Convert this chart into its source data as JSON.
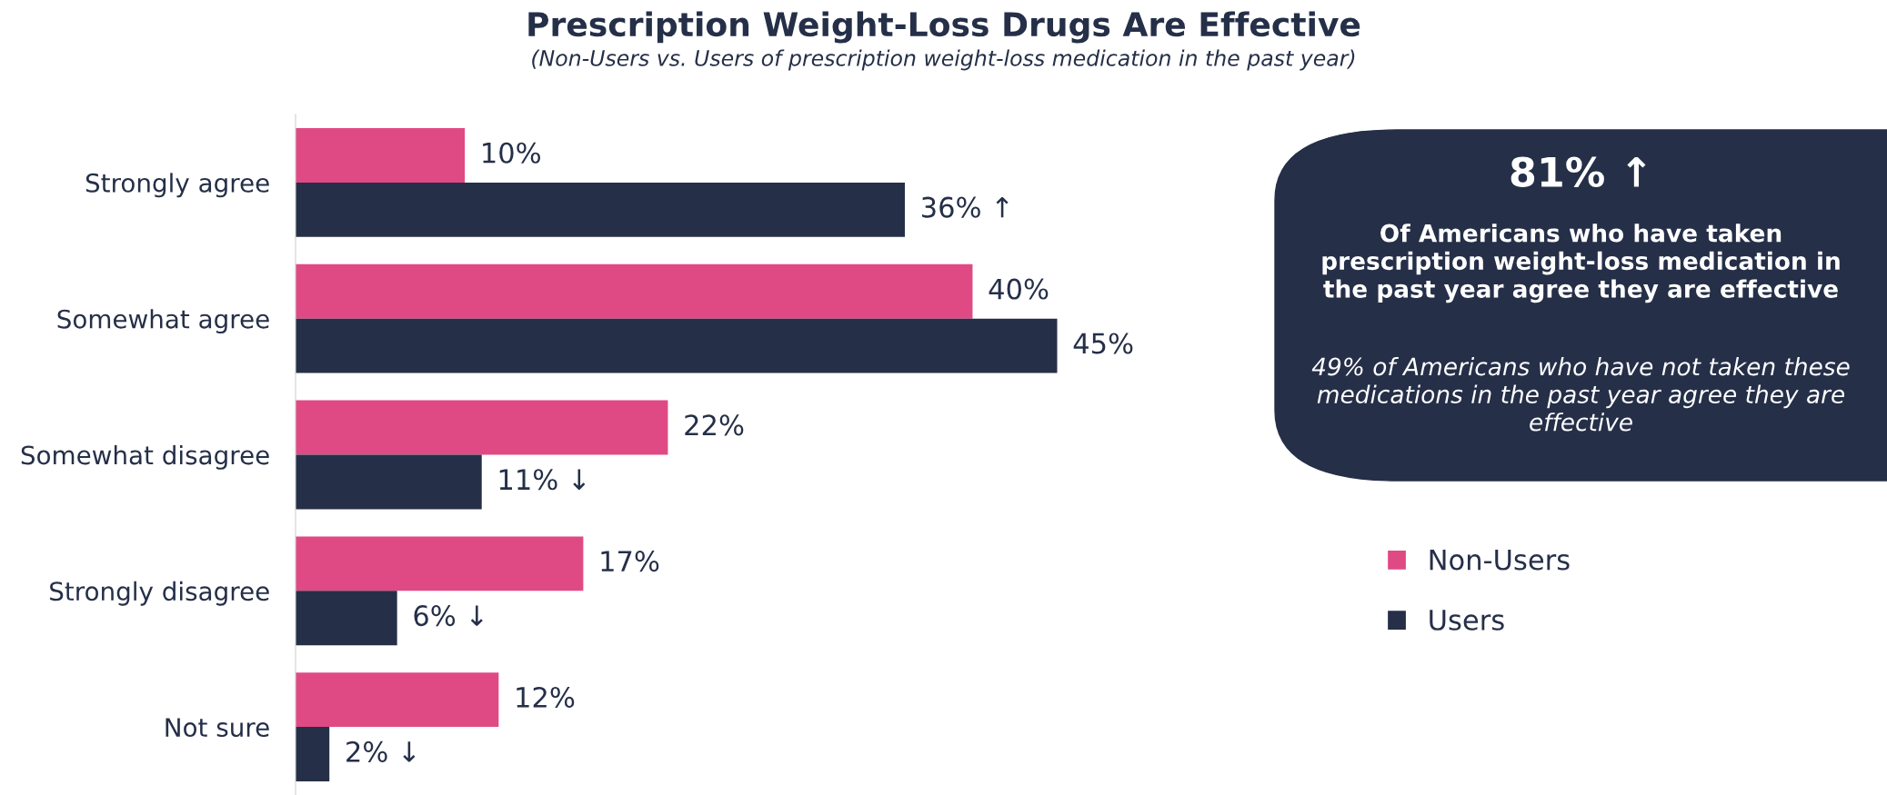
{
  "chart_data": [
    {
      "type": "bar",
      "orientation": "horizontal",
      "title": "Prescription Weight-Loss Drugs Are Effective",
      "subtitle": "(Non-Users vs. Users of prescription weight-loss medication in the past year)",
      "categories": [
        "Strongly agree",
        "Somewhat agree",
        "Somewhat disagree",
        "Strongly disagree",
        "Not sure"
      ],
      "series": [
        {
          "name": "Non-Users",
          "color": "#e04a84",
          "values": [
            10,
            40,
            22,
            17,
            12
          ],
          "value_labels": [
            "10%",
            "40%",
            "22%",
            "17%",
            "12%"
          ]
        },
        {
          "name": "Users",
          "color": "#252f48",
          "values": [
            36,
            45,
            11,
            6,
            2
          ],
          "value_labels": [
            "36% ↑",
            "45%",
            "11% ↓",
            "6% ↓",
            "2% ↓"
          ]
        }
      ],
      "legend": "right",
      "grid": false
    },
    {
      "type": "other",
      "title": "81% ↑",
      "annotations": [
        "Of Americans who have taken prescription weight-loss medication in the past year agree they are effective",
        "49% of Americans who have not taken these medications in the past year agree they are effective"
      ]
    }
  ]
}
